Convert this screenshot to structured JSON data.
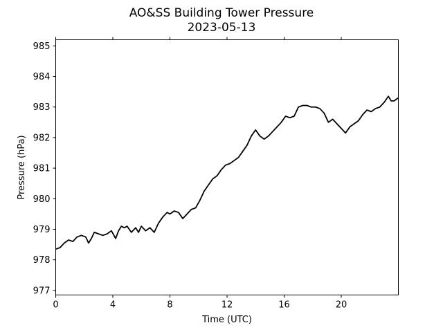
{
  "chart_data": {
    "type": "line",
    "title": "AO&SS Building Tower Pressure",
    "subtitle": "2023-05-13",
    "xlabel": "Time (UTC)",
    "ylabel": "Pressure (hPa)",
    "xlim": [
      0,
      24
    ],
    "ylim": [
      976.85,
      985.2
    ],
    "xticks": [
      0,
      4,
      8,
      12,
      16,
      20
    ],
    "yticks": [
      977,
      978,
      979,
      980,
      981,
      982,
      983,
      984,
      985
    ],
    "grid": false,
    "legend": "none",
    "line_color": "#000000",
    "series": [
      {
        "x": [
          0,
          0.3,
          0.6,
          0.9,
          1.2,
          1.5,
          1.8,
          2.1,
          2.3,
          2.5,
          2.7,
          3.0,
          3.3,
          3.6,
          3.9,
          4.2,
          4.4,
          4.6,
          4.8,
          5.0,
          5.3,
          5.6,
          5.8,
          6.0,
          6.3,
          6.6,
          6.9,
          7.2,
          7.5,
          7.8,
          8.0,
          8.3,
          8.6,
          8.9,
          9.2,
          9.5,
          9.8,
          10.1,
          10.4,
          10.7,
          11.0,
          11.3,
          11.6,
          11.9,
          12.2,
          12.5,
          12.8,
          13.1,
          13.4,
          13.7,
          14.0,
          14.3,
          14.6,
          14.9,
          15.2,
          15.5,
          15.8,
          16.1,
          16.4,
          16.7,
          17.0,
          17.3,
          17.6,
          17.9,
          18.2,
          18.5,
          18.8,
          19.1,
          19.4,
          19.7,
          20.0,
          20.3,
          20.6,
          20.9,
          21.2,
          21.5,
          21.8,
          22.1,
          22.4,
          22.7,
          23.0,
          23.3,
          23.5,
          23.7,
          23.85,
          24.0
        ],
        "values": [
          978.35,
          978.4,
          978.55,
          978.65,
          978.6,
          978.75,
          978.8,
          978.75,
          978.55,
          978.7,
          978.9,
          978.85,
          978.8,
          978.85,
          978.95,
          978.7,
          978.95,
          979.1,
          979.05,
          979.1,
          978.9,
          979.05,
          978.9,
          979.1,
          978.95,
          979.05,
          978.9,
          979.2,
          979.4,
          979.55,
          979.5,
          979.6,
          979.55,
          979.35,
          979.5,
          979.65,
          979.7,
          979.95,
          980.25,
          980.45,
          980.65,
          980.75,
          980.95,
          981.1,
          981.15,
          981.25,
          981.35,
          981.55,
          981.75,
          982.05,
          982.25,
          982.05,
          981.95,
          982.05,
          982.2,
          982.35,
          982.5,
          982.7,
          982.65,
          982.7,
          983.0,
          983.05,
          983.05,
          983.0,
          983.0,
          982.95,
          982.8,
          982.5,
          982.6,
          982.45,
          982.3,
          982.15,
          982.35,
          982.45,
          982.55,
          982.75,
          982.9,
          982.85,
          982.95,
          983.0,
          983.15,
          983.35,
          983.2,
          983.2,
          983.25,
          983.3
        ]
      }
    ]
  }
}
